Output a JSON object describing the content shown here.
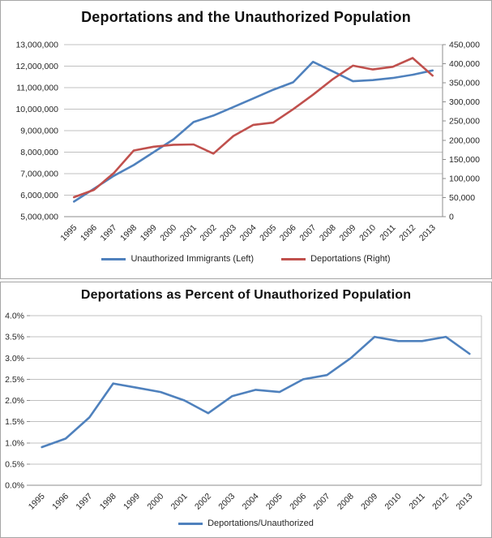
{
  "page": {
    "background": "#ffffff",
    "panel_border_color": "#a6a6a6",
    "grid_color": "#c0c0c0",
    "axis_color": "#8c8c8c",
    "tick_text_color": "#262626"
  },
  "chart_data": [
    {
      "id": "deportations-and-unauthorized-population",
      "type": "line",
      "title": "Deportations and the Unauthorized Population",
      "grid": "horizontal",
      "legend_position": "bottom",
      "x_categories": [
        "1995",
        "1996",
        "1997",
        "1998",
        "1999",
        "2000",
        "2001",
        "2002",
        "2003",
        "2004",
        "2005",
        "2006",
        "2007",
        "2008",
        "2009",
        "2010",
        "2011",
        "2012",
        "2013"
      ],
      "series": [
        {
          "name": "Unauthorized Immigrants (Left)",
          "axis": "left",
          "color": "#4F81BD",
          "values": [
            5700000,
            6300000,
            6900000,
            7400000,
            8000000,
            8600000,
            9400000,
            9700000,
            10100000,
            10500000,
            10900000,
            11250000,
            12200000,
            11750000,
            11300000,
            11350000,
            11450000,
            11600000,
            11800000
          ]
        },
        {
          "name": "Deportations (Right)",
          "axis": "right",
          "color": "#C0504D",
          "values": [
            51000,
            70000,
            114000,
            173000,
            183000,
            188000,
            189000,
            165000,
            211000,
            240000,
            246000,
            281000,
            319000,
            360000,
            395000,
            385000,
            392000,
            415000,
            369000
          ]
        }
      ],
      "left_axis": {
        "min": 5000000,
        "max": 13000000,
        "step": 1000000,
        "tick_labels": [
          "5,000,000",
          "6,000,000",
          "7,000,000",
          "8,000,000",
          "9,000,000",
          "10,000,000",
          "11,000,000",
          "12,000,000",
          "13,000,000"
        ]
      },
      "right_axis": {
        "min": 0,
        "max": 450000,
        "step": 50000,
        "tick_labels": [
          "0",
          "50,000",
          "100,000",
          "150,000",
          "200,000",
          "250,000",
          "300,000",
          "350,000",
          "400,000",
          "450,000"
        ]
      }
    },
    {
      "id": "deportations-as-percent-of-unauthorized",
      "type": "line",
      "title": "Deportations as Percent of Unauthorized Population",
      "grid": "horizontal",
      "legend_position": "bottom",
      "x_categories": [
        "1995",
        "1996",
        "1997",
        "1998",
        "1999",
        "2000",
        "2001",
        "2002",
        "2003",
        "2004",
        "2005",
        "2006",
        "2007",
        "2008",
        "2009",
        "2010",
        "2011",
        "2012",
        "2013"
      ],
      "series": [
        {
          "name": "Deportations/Unauthorized",
          "axis": "left",
          "color": "#4F81BD",
          "values": [
            0.9,
            1.1,
            1.6,
            2.4,
            2.3,
            2.2,
            2.0,
            1.7,
            2.1,
            2.25,
            2.2,
            2.5,
            2.6,
            3.0,
            3.5,
            3.4,
            3.4,
            3.5,
            3.1
          ]
        }
      ],
      "left_axis": {
        "min": 0,
        "max": 4,
        "step": 0.5,
        "tick_labels": [
          "0.0%",
          "0.5%",
          "1.0%",
          "1.5%",
          "2.0%",
          "2.5%",
          "3.0%",
          "3.5%",
          "4.0%"
        ]
      }
    }
  ]
}
